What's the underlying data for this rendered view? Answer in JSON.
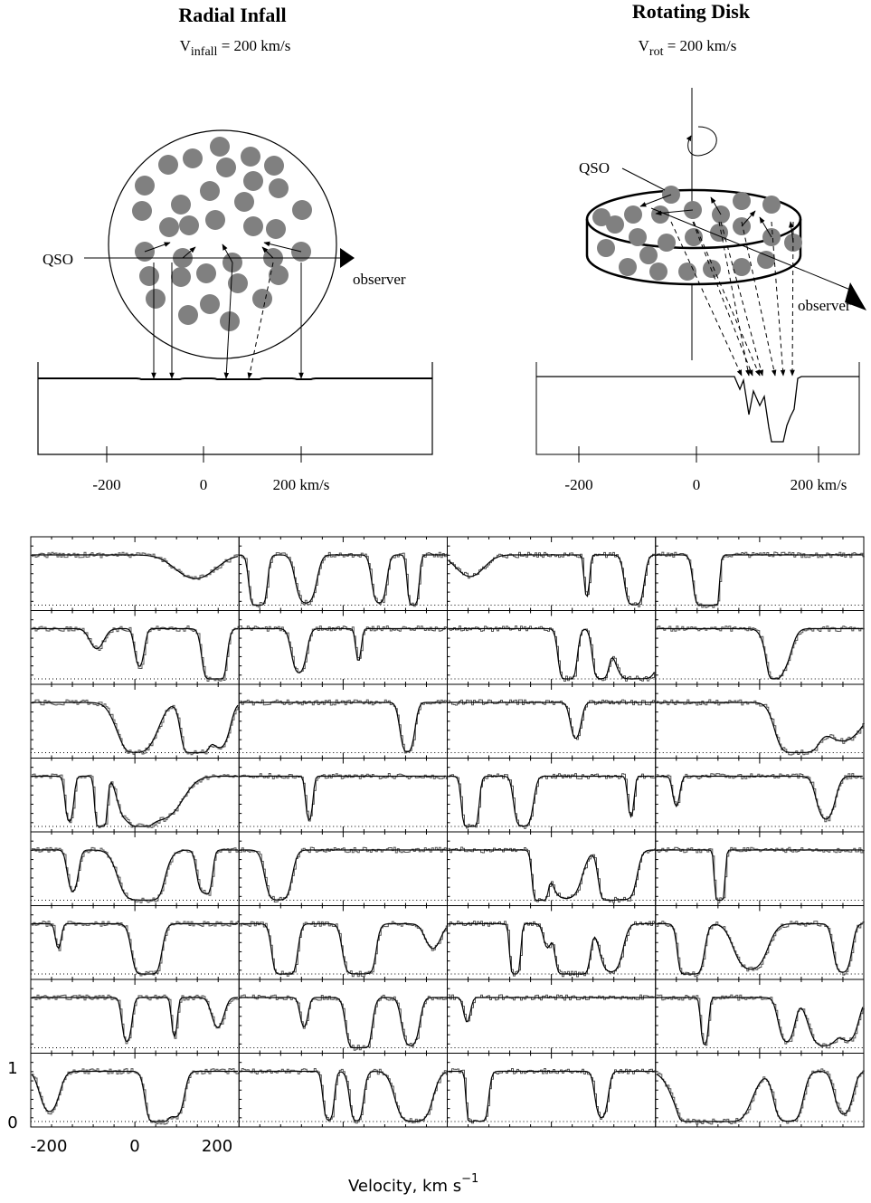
{
  "left_panel": {
    "title": "Radial Infall",
    "subtitle_v": "V",
    "subtitle_sub": "infall",
    "subtitle_rest": " = 200 km/s",
    "qso_label": "QSO",
    "observer_label": "observer",
    "axis_labels": [
      "-200",
      "0",
      "200 km/s"
    ]
  },
  "right_panel": {
    "title": "Rotating Disk",
    "subtitle_v": "V",
    "subtitle_sub": "rot",
    "subtitle_rest": " = 200 km/s",
    "qso_label": "QSO",
    "observer_label": "observer",
    "axis_labels": [
      "-200",
      "0",
      "200 km/s"
    ]
  },
  "spectra_grid": {
    "y_tick_labels": [
      "1",
      "0"
    ],
    "x_tick_labels": [
      "-200",
      "0",
      "200"
    ],
    "x_label": "Velocity,  km  s",
    "x_label_sup": "−1"
  }
}
